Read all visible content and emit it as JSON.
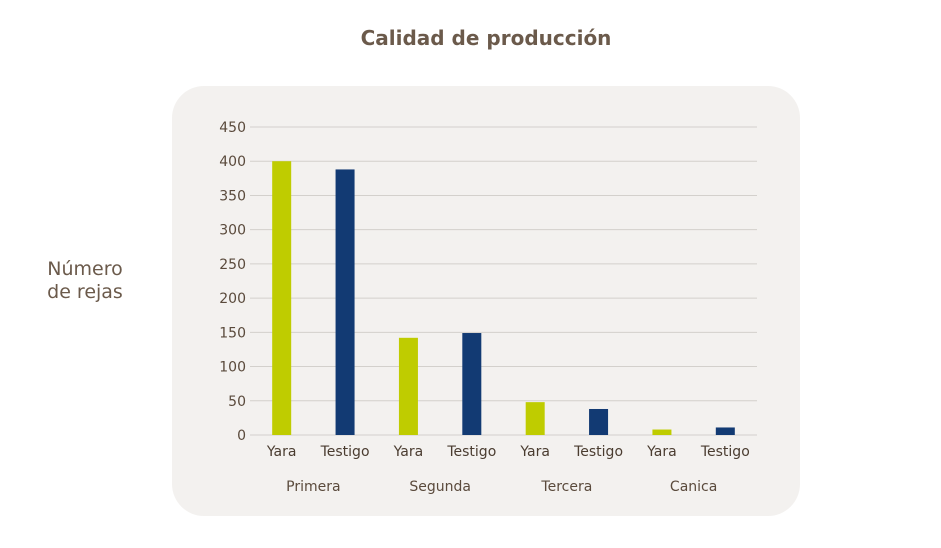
{
  "chart_data": {
    "type": "bar",
    "title": "Calidad de producción",
    "ylabel_lines": [
      "Número",
      "de rejas"
    ],
    "xlabel": "",
    "ylim": [
      0,
      450
    ],
    "yticks": [
      0,
      50,
      100,
      150,
      200,
      250,
      300,
      350,
      400,
      450
    ],
    "grid": true,
    "groups": [
      "Primera",
      "Segunda",
      "Tercera",
      "Canica"
    ],
    "series": [
      {
        "name": "Yara",
        "color": "#bfcc00",
        "values": [
          400,
          142,
          48,
          8
        ]
      },
      {
        "name": "Testigo",
        "color": "#123a73",
        "values": [
          388,
          149,
          38,
          11
        ]
      }
    ]
  }
}
